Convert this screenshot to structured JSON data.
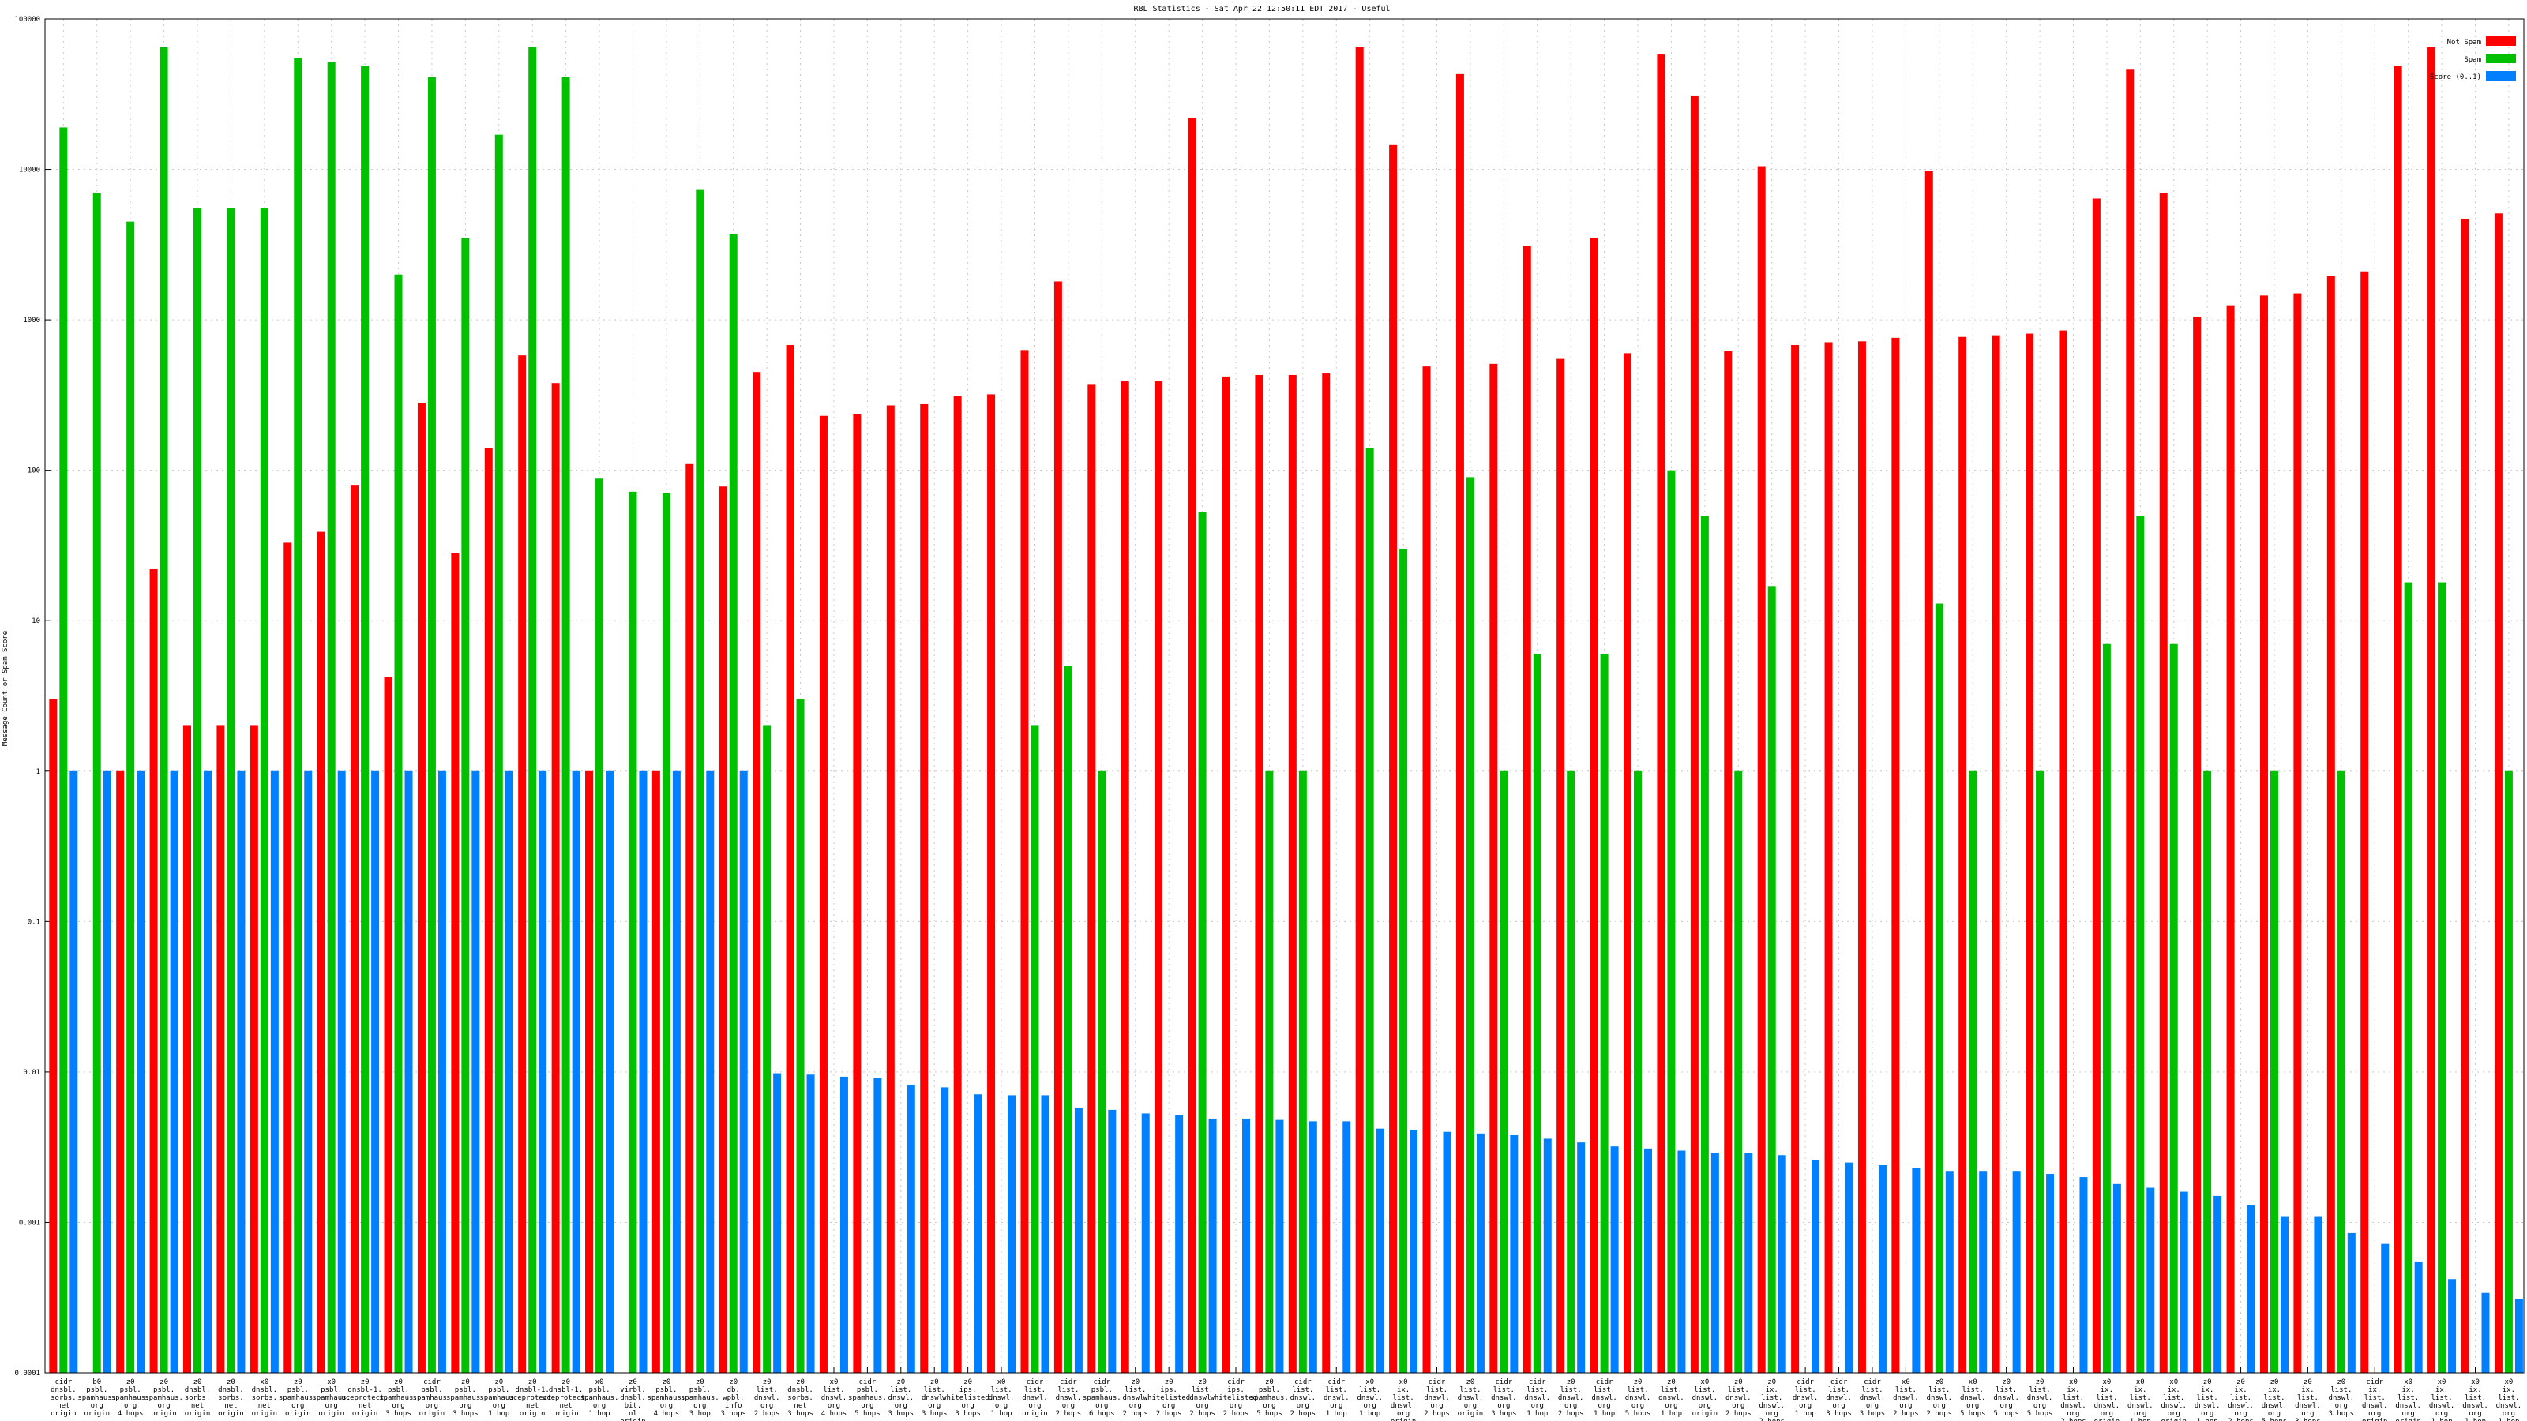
{
  "chart_data": {
    "type": "bar",
    "title": "RBL Statistics - Sat Apr 22 12:50:11 EDT 2017 - Useful",
    "xlabel": "",
    "ylabel": "Message Count or Spam Score",
    "yscale": "log",
    "ylim": [
      0.0001,
      100000
    ],
    "yticks": [
      "0.0001",
      "0.001",
      "0.01",
      "0.1",
      "1",
      "10",
      "100",
      "1000",
      "10000",
      "100000"
    ],
    "grid": true,
    "legend_position": "top-right",
    "categories": [
      [
        "cidr",
        "dnsbl.",
        "sorbs.",
        "net",
        "origin"
      ],
      [
        "b0",
        "psbl.",
        "spamhaus.",
        "org",
        "origin"
      ],
      [
        "z0",
        "psbl.",
        "spamhaus.",
        "org",
        "4 hops"
      ],
      [
        "z0",
        "psbl.",
        "spamhaus.",
        "org",
        "origin"
      ],
      [
        "z0",
        "dnsbl.",
        "sorbs.",
        "net",
        "origin"
      ],
      [
        "z0",
        "dnsbl.",
        "sorbs.",
        "net",
        "origin"
      ],
      [
        "x0",
        "dnsbl.",
        "sorbs.",
        "net",
        "origin"
      ],
      [
        "z0",
        "psbl.",
        "spamhaus.",
        "org",
        "origin"
      ],
      [
        "x0",
        "psbl.",
        "spamhaus.",
        "org",
        "origin"
      ],
      [
        "z0",
        "dnsbl-1.",
        "uceprotect.",
        "net",
        "origin"
      ],
      [
        "z0",
        "psbl.",
        "spamhaus.",
        "org",
        "3 hops"
      ],
      [
        "cidr",
        "psbl.",
        "spamhaus.",
        "org",
        "origin"
      ],
      [
        "z0",
        "psbl.",
        "spamhaus.",
        "org",
        "3 hops"
      ],
      [
        "z0",
        "psbl.",
        "spamhaus.",
        "org",
        "1 hop"
      ],
      [
        "z0",
        "dnsbl-1.",
        "uceprotect.",
        "net",
        "origin"
      ],
      [
        "z0",
        "dnsbl-1.",
        "uceprotect.",
        "net",
        "origin"
      ],
      [
        "x0",
        "psbl.",
        "spamhaus.",
        "org",
        "1 hop"
      ],
      [
        "z0",
        "virbl.",
        "dnsbl.",
        "bit.",
        "nl",
        "origin"
      ],
      [
        "z0",
        "psbl.",
        "spamhaus.",
        "org",
        "4 hops"
      ],
      [
        "z0",
        "psbl.",
        "spamhaus.",
        "org",
        "3 hop"
      ],
      [
        "z0",
        "db.",
        "wpbl.",
        "info",
        "3 hops"
      ],
      [
        "z0",
        "list.",
        "dnswl.",
        "org",
        "2 hops"
      ],
      [
        "z0",
        "dnsbl.",
        "sorbs.",
        "net",
        "3 hops"
      ],
      [
        "x0",
        "list.",
        "dnswl.",
        "org",
        "4 hops"
      ],
      [
        "cidr",
        "psbl.",
        "spamhaus.",
        "org",
        "5 hops"
      ],
      [
        "z0",
        "list.",
        "dnswl.",
        "org",
        "3 hops"
      ],
      [
        "z0",
        "list.",
        "dnswl.",
        "org",
        "3 hops"
      ],
      [
        "z0",
        "ips.",
        "whitelisted.",
        "org",
        "3 hops"
      ],
      [
        "x0",
        "list.",
        "dnswl.",
        "org",
        "1 hop"
      ],
      [
        "cidr",
        "list.",
        "dnswl.",
        "org",
        "origin"
      ],
      [
        "cidr",
        "list.",
        "dnswl.",
        "org",
        "2 hops"
      ],
      [
        "cidr",
        "psbl.",
        "spamhaus.",
        "org",
        "6 hops"
      ],
      [
        "z0",
        "list.",
        "dnswl.",
        "org",
        "2 hops"
      ],
      [
        "z0",
        "ips.",
        "whitelisted.",
        "org",
        "2 hops"
      ],
      [
        "z0",
        "list.",
        "dnswl.",
        "org",
        "2 hops"
      ],
      [
        "cidr",
        "ips.",
        "whitelisted.",
        "org",
        "2 hops"
      ],
      [
        "z0",
        "psbl.",
        "spamhaus.",
        "org",
        "5 hops"
      ],
      [
        "cidr",
        "list.",
        "dnswl.",
        "org",
        "2 hops"
      ],
      [
        "cidr",
        "list.",
        "dnswl.",
        "org",
        "1 hop"
      ],
      [
        "x0",
        "list.",
        "dnswl.",
        "org",
        "1 hop"
      ],
      [
        "x0",
        "ix.",
        "list.",
        "dnswl.",
        "org",
        "origin"
      ],
      [
        "cidr",
        "list.",
        "dnswl.",
        "org",
        "2 hops"
      ],
      [
        "z0",
        "list.",
        "dnswl.",
        "org",
        "origin"
      ],
      [
        "cidr",
        "list.",
        "dnswl.",
        "org",
        "3 hops"
      ],
      [
        "cidr",
        "list.",
        "dnswl.",
        "org",
        "1 hop"
      ],
      [
        "z0",
        "list.",
        "dnswl.",
        "org",
        "2 hops"
      ],
      [
        "cidr",
        "list.",
        "dnswl.",
        "org",
        "1 hop"
      ],
      [
        "z0",
        "list.",
        "dnswl.",
        "org",
        "5 hops"
      ],
      [
        "z0",
        "list.",
        "dnswl.",
        "org",
        "1 hop"
      ],
      [
        "x0",
        "list.",
        "dnswl.",
        "org",
        "origin"
      ],
      [
        "z0",
        "list.",
        "dnswl.",
        "org",
        "2 hops"
      ],
      [
        "z0",
        "ix.",
        "list.",
        "dnswl.",
        "org",
        "2 hops"
      ],
      [
        "cidr",
        "list.",
        "dnswl.",
        "org",
        "1 hop"
      ],
      [
        "cidr",
        "list.",
        "dnswl.",
        "org",
        "3 hops"
      ],
      [
        "cidr",
        "list.",
        "dnswl.",
        "org",
        "3 hops"
      ],
      [
        "x0",
        "list.",
        "dnswl.",
        "org",
        "2 hops"
      ],
      [
        "z0",
        "list.",
        "dnswl.",
        "org",
        "2 hops"
      ],
      [
        "x0",
        "list.",
        "dnswl.",
        "org",
        "5 hops"
      ],
      [
        "z0",
        "list.",
        "dnswl.",
        "org",
        "5 hops"
      ],
      [
        "z0",
        "list.",
        "dnswl.",
        "org",
        "5 hops"
      ],
      [
        "x0",
        "ix.",
        "list.",
        "dnswl.",
        "org",
        "2 hops"
      ],
      [
        "x0",
        "ix.",
        "list.",
        "dnswl.",
        "org",
        "origin"
      ],
      [
        "x0",
        "ix.",
        "list.",
        "dnswl.",
        "org",
        "1 hop"
      ],
      [
        "x0",
        "ix.",
        "list.",
        "dnswl.",
        "org",
        "origin"
      ],
      [
        "z0",
        "ix.",
        "list.",
        "dnswl.",
        "org",
        "1 hop"
      ],
      [
        "z0",
        "ix.",
        "list.",
        "dnswl.",
        "org",
        "2 hops"
      ],
      [
        "z0",
        "ix.",
        "list.",
        "dnswl.",
        "org",
        "5 hops"
      ],
      [
        "z0",
        "ix.",
        "list.",
        "dnswl.",
        "org",
        "3 hops"
      ],
      [
        "z0",
        "list.",
        "dnswl.",
        "org",
        "3 hops"
      ],
      [
        "cidr",
        "ix.",
        "list.",
        "dnswl.",
        "org",
        "origin"
      ],
      [
        "x0",
        "ix.",
        "list.",
        "dnswl.",
        "org",
        "origin"
      ],
      [
        "x0",
        "ix.",
        "list.",
        "dnswl.",
        "org",
        "1 hop"
      ],
      [
        "x0",
        "ix.",
        "list.",
        "dnswl.",
        "org",
        "1 hop"
      ],
      [
        "x0",
        "ix.",
        "list.",
        "dnswl.",
        "org",
        "1 hop"
      ]
    ],
    "series": [
      {
        "name": "Not Spam",
        "color": "#ff0000",
        "values": [
          3,
          null,
          1,
          22,
          2,
          2,
          2,
          33,
          39,
          80,
          4.2,
          280,
          28,
          140,
          580,
          380,
          1,
          null,
          1,
          110,
          78,
          450,
          680,
          230,
          235,
          270,
          275,
          310,
          320,
          630,
          1800,
          370,
          390,
          390,
          22000,
          420,
          430,
          430,
          440,
          65000,
          14500,
          490,
          43000,
          510,
          3100,
          550,
          3500,
          600,
          58000,
          31000,
          620,
          10500,
          680,
          710,
          720,
          760,
          9800,
          770,
          790,
          810,
          850,
          6400,
          46000,
          7000,
          1050,
          1250,
          1450,
          1500,
          1950,
          2100,
          49000,
          65000,
          4700,
          5100
        ]
      },
      {
        "name": "Spam",
        "color": "#00c000",
        "values": [
          19000,
          7000,
          4500,
          65000,
          5500,
          5500,
          5500,
          55000,
          52000,
          49000,
          2000,
          41000,
          3500,
          17000,
          65000,
          41000,
          88,
          72,
          71,
          7300,
          3700,
          2,
          3,
          null,
          null,
          null,
          null,
          null,
          null,
          2,
          5,
          1,
          null,
          null,
          53,
          null,
          1,
          1,
          null,
          140,
          30,
          null,
          90,
          1,
          6,
          1,
          6,
          1,
          100,
          50,
          1,
          17,
          null,
          null,
          null,
          null,
          13,
          1,
          null,
          1,
          null,
          7,
          50,
          7,
          1,
          null,
          1,
          null,
          1,
          null,
          18,
          18,
          null,
          1
        ]
      },
      {
        "name": "Score (0..1)",
        "color": "#0080ff",
        "values": [
          1,
          1,
          1,
          1,
          1,
          1,
          1,
          1,
          1,
          1,
          1,
          1,
          1,
          1,
          1,
          1,
          1,
          1,
          1,
          1,
          1,
          0.0098,
          0.0096,
          0.0093,
          0.0091,
          0.0082,
          0.0079,
          0.0071,
          0.007,
          0.007,
          0.0058,
          0.0056,
          0.0053,
          0.0052,
          0.0049,
          0.0049,
          0.0048,
          0.0047,
          0.0047,
          0.0042,
          0.0041,
          0.004,
          0.0039,
          0.0038,
          0.0036,
          0.0034,
          0.0032,
          0.0031,
          0.003,
          0.0029,
          0.0029,
          0.0028,
          0.0026,
          0.0025,
          0.0024,
          0.0023,
          0.0022,
          0.0022,
          0.0022,
          0.0021,
          0.002,
          0.0018,
          0.0017,
          0.0016,
          0.0015,
          0.0013,
          0.0011,
          0.0011,
          0.00085,
          0.00072,
          0.00055,
          0.00042,
          0.00034,
          0.00031
        ]
      }
    ]
  }
}
